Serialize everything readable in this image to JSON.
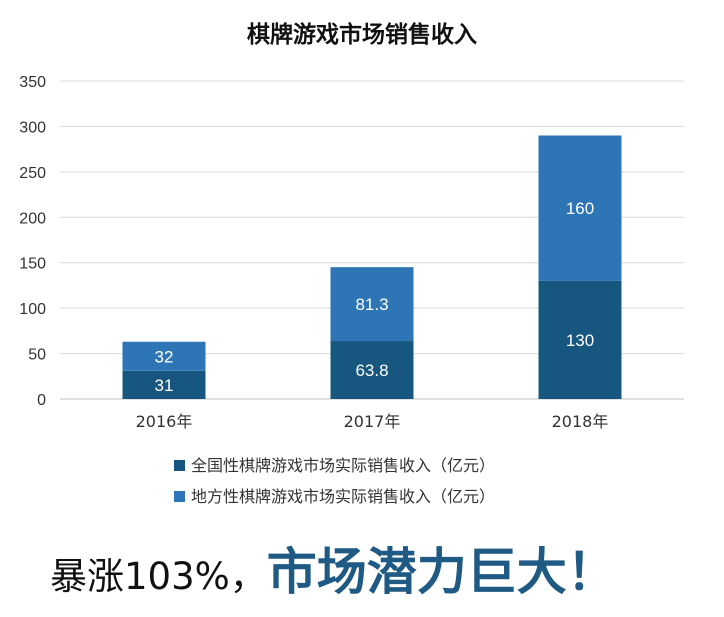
{
  "chart_data": {
    "type": "bar",
    "stacked": true,
    "title": "棋牌游戏市场销售收入",
    "categories": [
      "2016年",
      "2017年",
      "2018年"
    ],
    "series": [
      {
        "name": "全国性棋牌游戏市场实际销售收入（亿元）",
        "values": [
          31,
          63.8,
          130
        ],
        "labels": [
          "31",
          "63.8",
          "130"
        ],
        "color": "#17577f"
      },
      {
        "name": "地方性棋牌游戏市场实际销售收入（亿元）",
        "values": [
          32,
          81.3,
          160
        ],
        "labels": [
          "32",
          "81.3",
          "160"
        ],
        "color": "#2e75b6"
      }
    ],
    "y_ticks": [
      0,
      50,
      100,
      150,
      200,
      250,
      300,
      350
    ],
    "ylim": [
      0,
      350
    ],
    "grid": true,
    "legend_position": "bottom"
  },
  "slogan": {
    "normal": "暴涨103%，",
    "highlight": "市场潜力巨大！",
    "highlight_color": "#1f5a84"
  }
}
